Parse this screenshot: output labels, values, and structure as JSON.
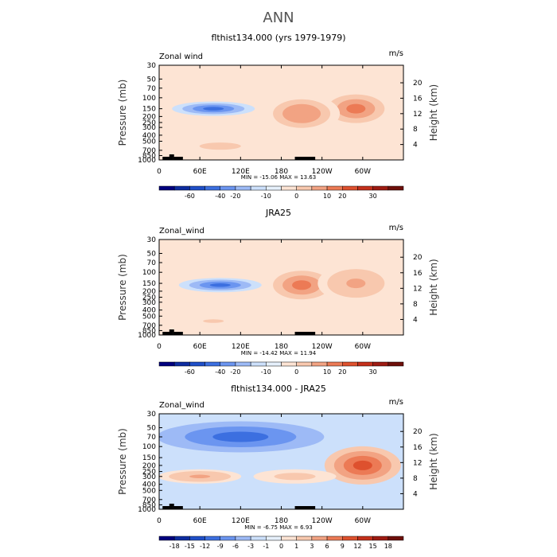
{
  "title": "ANN",
  "chart_data": [
    {
      "type": "contour",
      "title": "flthist134.000 (yrs 1979-1979)",
      "left_string": "Zonal wind",
      "right_string": "m/s",
      "ylabel": "Pressure (mb)",
      "y2label": "Height (km)",
      "x_ticks": [
        "0",
        "60E",
        "120E",
        "180",
        "120W",
        "60W"
      ],
      "x_tick_lon": [
        0,
        60,
        120,
        180,
        240,
        300
      ],
      "xlim": [
        0,
        360
      ],
      "y_ticks": [
        "30",
        "50",
        "70",
        "100",
        "150",
        "200",
        "250",
        "300",
        "400",
        "500",
        "700",
        "850",
        "1000"
      ],
      "y_tick_p": [
        30,
        50,
        70,
        100,
        150,
        200,
        250,
        300,
        400,
        500,
        700,
        850,
        1000
      ],
      "ylim_mb": [
        1000,
        30
      ],
      "height_ticks": [
        "4",
        "8",
        "12",
        "16",
        "20"
      ],
      "height_km": [
        4,
        8,
        12,
        16,
        20
      ],
      "stats": "MIN = -15.06   MAX = 13.63",
      "min": -15.06,
      "max": 13.63,
      "levels": [
        "-60",
        "-40",
        "-20",
        "-10",
        "0",
        "10",
        "20",
        "30"
      ],
      "colors": [
        "#00007f",
        "#0d2ca0",
        "#1f4fc8",
        "#3c6fe0",
        "#6b95f0",
        "#9dbaf6",
        "#cce0fb",
        "#e6f0fb",
        "#fde4d4",
        "#f8c8ae",
        "#f2a383",
        "#ec7a55",
        "#de512e",
        "#c4301b",
        "#9e1b12",
        "#6e0f0a"
      ],
      "features": [
        {
          "lon": 290,
          "p": 150,
          "value": 13.6
        },
        {
          "lon": 210,
          "p": 180,
          "value": 10.5
        },
        {
          "lon": 80,
          "p": 150,
          "value": -15.1
        },
        {
          "lon": 90,
          "p": 600,
          "value": 5.0
        }
      ]
    },
    {
      "type": "contour",
      "title": "JRA25",
      "left_string": "Zonal_wind",
      "right_string": "m/s",
      "ylabel": "Pressure (mb)",
      "y2label": "Height (km)",
      "x_ticks": [
        "0",
        "60E",
        "120E",
        "180",
        "120W",
        "60W"
      ],
      "x_tick_lon": [
        0,
        60,
        120,
        180,
        240,
        300
      ],
      "xlim": [
        0,
        360
      ],
      "y_ticks": [
        "30",
        "50",
        "70",
        "100",
        "150",
        "200",
        "250",
        "300",
        "400",
        "500",
        "700",
        "850",
        "1000"
      ],
      "y_tick_p": [
        30,
        50,
        70,
        100,
        150,
        200,
        250,
        300,
        400,
        500,
        700,
        850,
        1000
      ],
      "ylim_mb": [
        1000,
        30
      ],
      "height_ticks": [
        "4",
        "8",
        "12",
        "16",
        "20"
      ],
      "height_km": [
        4,
        8,
        12,
        16,
        20
      ],
      "stats": "MIN = -14.42   MAX = 11.94",
      "min": -14.42,
      "max": 11.94,
      "levels": [
        "-60",
        "-40",
        "-20",
        "-10",
        "0",
        "10",
        "20",
        "30"
      ],
      "colors": [
        "#00007f",
        "#0d2ca0",
        "#1f4fc8",
        "#3c6fe0",
        "#6b95f0",
        "#9dbaf6",
        "#cce0fb",
        "#e6f0fb",
        "#fde4d4",
        "#f8c8ae",
        "#f2a383",
        "#ec7a55",
        "#de512e",
        "#c4301b",
        "#9e1b12",
        "#6e0f0a"
      ],
      "features": [
        {
          "lon": 210,
          "p": 160,
          "value": 11.9
        },
        {
          "lon": 290,
          "p": 150,
          "value": 8.0
        },
        {
          "lon": 90,
          "p": 160,
          "value": -14.4
        },
        {
          "lon": 80,
          "p": 600,
          "value": 4.0
        }
      ]
    },
    {
      "type": "contour",
      "title": "flthist134.000 - JRA25",
      "left_string": "Zonal_wind",
      "right_string": "m/s",
      "ylabel": "Pressure (mb)",
      "y2label": "Height (km)",
      "x_ticks": [
        "0",
        "60E",
        "120E",
        "180",
        "120W",
        "60W"
      ],
      "x_tick_lon": [
        0,
        60,
        120,
        180,
        240,
        300
      ],
      "xlim": [
        0,
        360
      ],
      "y_ticks": [
        "30",
        "50",
        "70",
        "100",
        "150",
        "200",
        "250",
        "300",
        "400",
        "500",
        "700",
        "850",
        "1000"
      ],
      "y_tick_p": [
        30,
        50,
        70,
        100,
        150,
        200,
        250,
        300,
        400,
        500,
        700,
        850,
        1000
      ],
      "ylim_mb": [
        1000,
        30
      ],
      "height_ticks": [
        "4",
        "8",
        "12",
        "16",
        "20"
      ],
      "height_km": [
        4,
        8,
        12,
        16,
        20
      ],
      "stats": "MIN = -6.75   MAX = 6.93",
      "min": -6.75,
      "max": 6.93,
      "levels": [
        "-18",
        "-15",
        "-12",
        "-9",
        "-6",
        "-3",
        "-1",
        "0",
        "1",
        "3",
        "6",
        "9",
        "12",
        "15",
        "18"
      ],
      "colors": [
        "#00007f",
        "#0d2ca0",
        "#1f4fc8",
        "#3c6fe0",
        "#6b95f0",
        "#9dbaf6",
        "#cce0fb",
        "#e6f0fb",
        "#fde4d4",
        "#f8c8ae",
        "#f2a383",
        "#ec7a55",
        "#de512e",
        "#c4301b",
        "#9e1b12",
        "#6e0f0a"
      ],
      "features": [
        {
          "lon": 120,
          "p": 70,
          "value": -6.75
        },
        {
          "lon": 300,
          "p": 200,
          "value": 6.93
        },
        {
          "lon": 60,
          "p": 300,
          "value": 4.0
        },
        {
          "lon": 200,
          "p": 300,
          "value": 3.0
        }
      ]
    }
  ]
}
